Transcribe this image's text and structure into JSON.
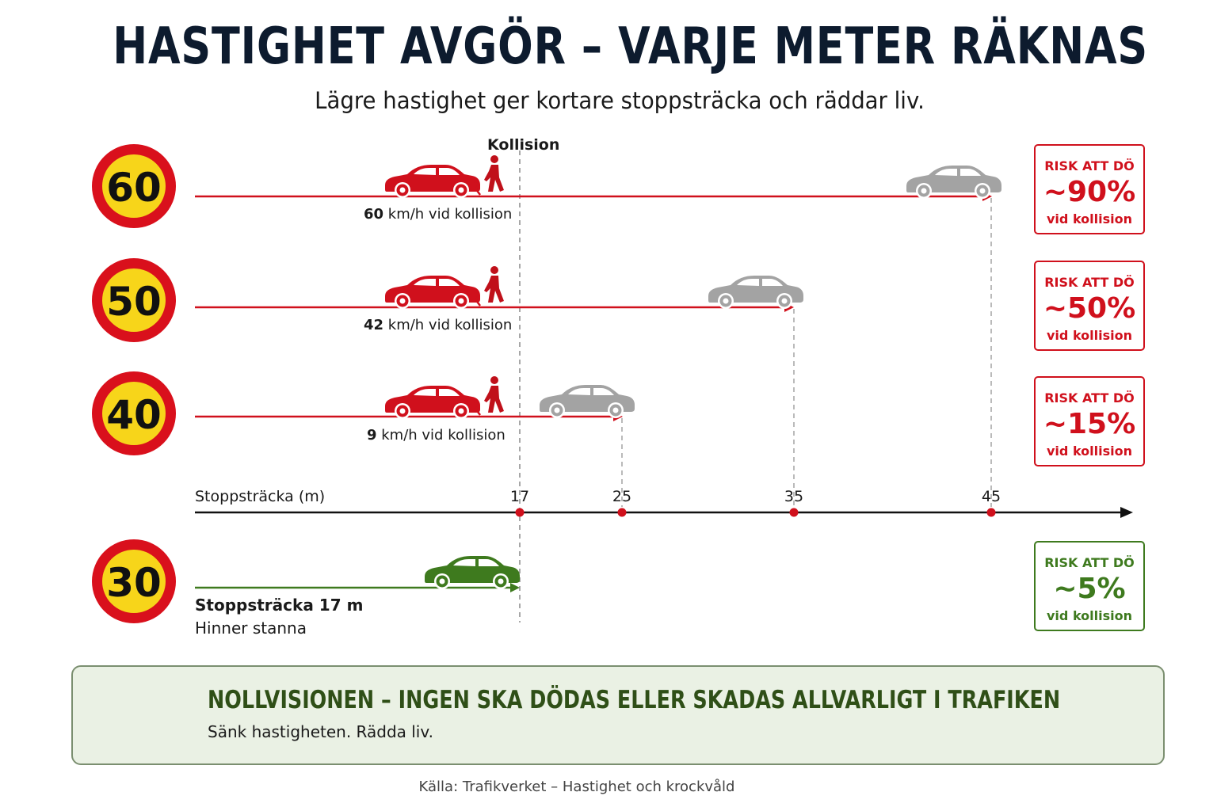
{
  "header": {
    "title": "HASTIGHET AVGÖR – VARJE METER RÄKNAS",
    "subtitle": "Lägre hastighet ger kortare stoppsträcka och räddar liv."
  },
  "collision_label": "Kollision",
  "rows": [
    {
      "speed": "60",
      "impact_speed": "60",
      "impact_suffix": " km/h vid kollision",
      "stop_distance": 45,
      "risk_head": "RISK ATT DÖ",
      "risk_value": "~90%",
      "risk_sub": "vid kollision"
    },
    {
      "speed": "50",
      "impact_speed": "42",
      "impact_suffix": " km/h vid kollision",
      "stop_distance": 35,
      "risk_head": "RISK ATT DÖ",
      "risk_value": "~50%",
      "risk_sub": "vid kollision"
    },
    {
      "speed": "40",
      "impact_speed": "9",
      "impact_suffix": " km/h vid kollision",
      "stop_distance": 25,
      "risk_head": "RISK ATT DÖ",
      "risk_value": "~15%",
      "risk_sub": "vid kollision"
    }
  ],
  "row30": {
    "speed": "30",
    "stop_distance": 17,
    "stop_label": "Stoppsträcka 17 m",
    "stop_sub": "Hinner stanna",
    "risk_head": "RISK ATT DÖ",
    "risk_value": "~5%",
    "risk_sub": "vid kollision"
  },
  "axis": {
    "label": "Stoppsträcka (m)",
    "ticks": [
      "17",
      "25",
      "35",
      "45"
    ]
  },
  "banner": {
    "title": "NOLLVISIONEN – INGEN SKA DÖDAS ELLER SKADAS ALLVARLIGT I TRAFIKEN",
    "subtitle": "Sänk hastigheten. Rädda liv."
  },
  "source": "Källa: Trafikverket – Hastighet och krockvåld",
  "colors": {
    "red": "#d0101c",
    "green": "#3e7a1e",
    "grey": "#a3a3a3",
    "sign_yellow": "#f7d51a",
    "navy": "#0d1b2e"
  },
  "icons": [
    "speed-sign-icon",
    "car-icon",
    "pedestrian-icon",
    "shield-check-icon",
    "family-house-icon"
  ]
}
